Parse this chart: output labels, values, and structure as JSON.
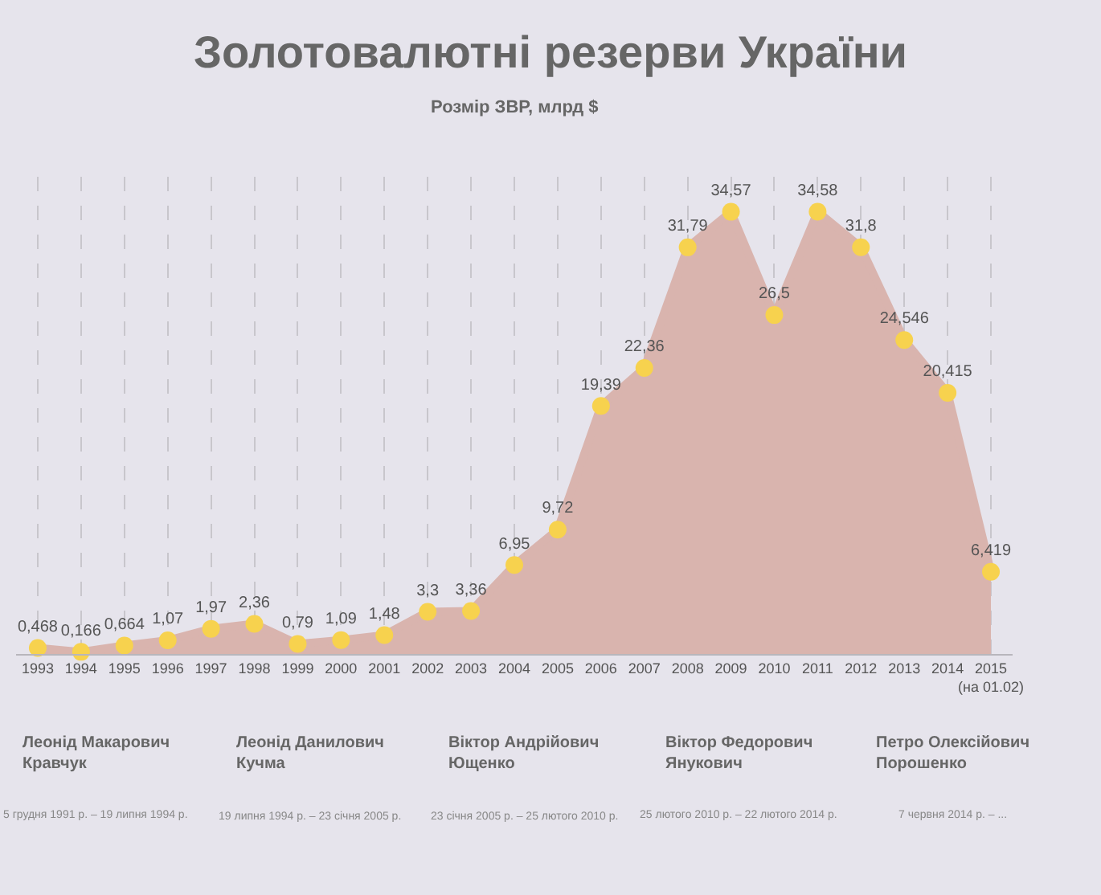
{
  "chart_data": {
    "type": "area",
    "title": "Золотовалютні резерви України",
    "subtitle": "Розмір ЗВР, млрд $",
    "categories": [
      "1993",
      "1994",
      "1995",
      "1996",
      "1997",
      "1998",
      "1999",
      "2000",
      "2001",
      "2002",
      "2003",
      "2004",
      "2005",
      "2006",
      "2007",
      "2008",
      "2009",
      "2010",
      "2011",
      "2012",
      "2013",
      "2014",
      "2015 (на 01.02)"
    ],
    "series": [
      {
        "color": "#d9b4ae",
        "values": [
          0.468,
          0.166,
          0.664,
          1.07,
          1.97,
          2.36,
          0.79,
          1.09,
          1.48,
          3.3,
          3.36,
          6.95,
          9.72,
          19.39,
          22.36,
          31.79,
          34.57,
          26.5,
          34.58,
          31.8,
          24.546,
          20.415,
          6.419
        ],
        "value_labels": [
          "0,468",
          "0,166",
          "0,664",
          "1,07",
          "1,97",
          "2,36",
          "0,79",
          "1,09",
          "1,48",
          "3,3",
          "3,36",
          "6,95",
          "9,72",
          "19,39",
          "22,36",
          "31,79",
          "34,57",
          "26,5",
          "34,58",
          "31,8",
          "24,546",
          "20,415",
          "6,419"
        ]
      }
    ],
    "marker": "circle",
    "grid": "x",
    "annotations": [
      "Леонід Макарович\nКравчук",
      "5 грудня 1991 р. – 19 липня 1994 р.",
      "Леонід Данилович\nКучма",
      "19 липня 1994 р. – 23 січня 2005 р.",
      "Віктор Андрійович\nЮщенко",
      "23 січня 2005 р. – 25 лютого 2010 р.",
      "Віктор Федорович\nЯнукович",
      "25 лютого 2010 р. – 22 лютого 2014 р.",
      "Петро Олексійович\nПорошенко",
      "7 червня 2014 р. – ..."
    ]
  }
}
